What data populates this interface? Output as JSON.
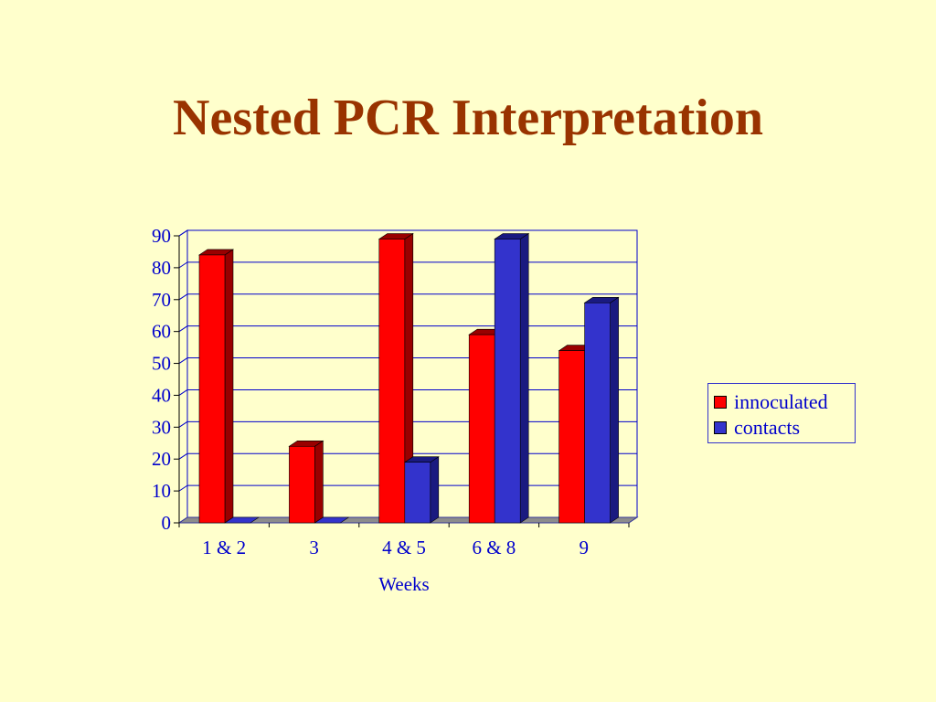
{
  "slide": {
    "title": "Nested PCR Interpretation"
  },
  "chart_data": {
    "type": "bar",
    "title": "",
    "xlabel": "Weeks",
    "ylabel": "",
    "categories": [
      "1 & 2",
      "3",
      "4 & 5",
      "6 & 8",
      "9"
    ],
    "series": [
      {
        "name": "innoculated",
        "values": [
          84,
          24,
          89,
          59,
          54
        ],
        "color": "#FF0000",
        "side_color": "#990000"
      },
      {
        "name": "contacts",
        "values": [
          0,
          0,
          19,
          89,
          69
        ],
        "color": "#3333CC",
        "side_color": "#1A1A80"
      }
    ],
    "ylim": [
      0,
      90
    ],
    "yticks": [
      0,
      10,
      20,
      30,
      40,
      50,
      60,
      70,
      80,
      90
    ],
    "grid": true,
    "legend_position": "right",
    "colors": {
      "axis_text": "#0000CC",
      "grid": "#0000CC",
      "title": "#993300"
    }
  }
}
